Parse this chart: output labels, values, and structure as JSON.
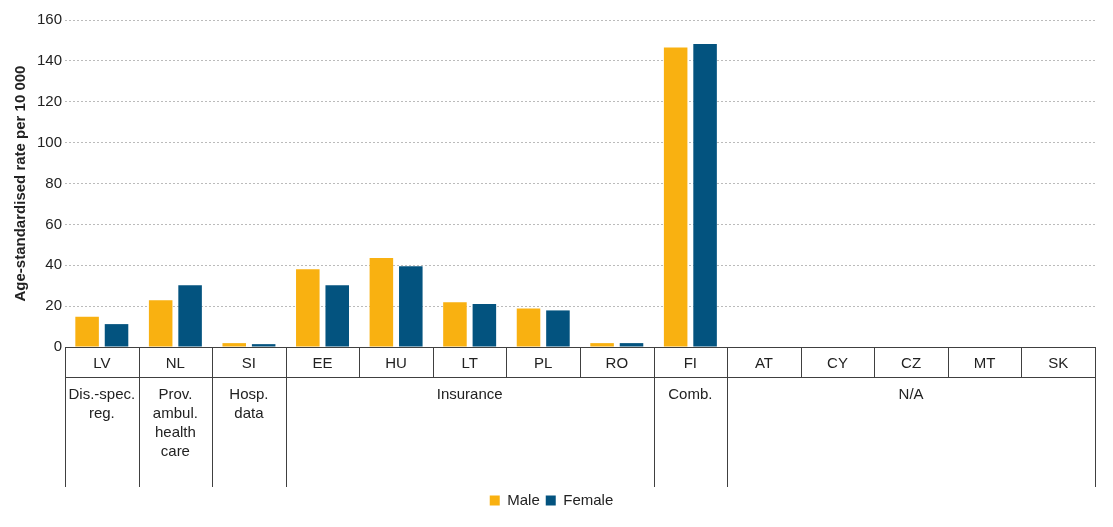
{
  "chart_data": {
    "type": "bar",
    "ylabel": "Age-standardised rate per 10 000",
    "categories": [
      "LV",
      "NL",
      "SI",
      "EE",
      "HU",
      "LT",
      "PL",
      "RO",
      "FI",
      "AT",
      "CY",
      "CZ",
      "MT",
      "SK"
    ],
    "series": [
      {
        "name": "Male",
        "color": "#f9b111",
        "values": [
          14.8,
          22.9,
          1.9,
          38,
          43.5,
          21.9,
          18.8,
          1.9,
          146.5,
          null,
          null,
          null,
          null,
          null
        ]
      },
      {
        "name": "Female",
        "color": "#03537f",
        "values": [
          11.2,
          30.2,
          1.4,
          30.2,
          39.5,
          21,
          17.9,
          1.9,
          148.3,
          null,
          null,
          null,
          null,
          null
        ]
      }
    ],
    "annotations": [
      "Dis.-spec. reg.",
      "Prov. ambul. health care",
      "Hosp. data",
      "Insurance",
      "Comb.",
      "N/A"
    ],
    "ylim": [
      0,
      160
    ],
    "yticks": [
      0,
      20,
      40,
      60,
      80,
      100,
      120,
      140,
      160
    ],
    "grid": "y",
    "legend": "bottom"
  }
}
